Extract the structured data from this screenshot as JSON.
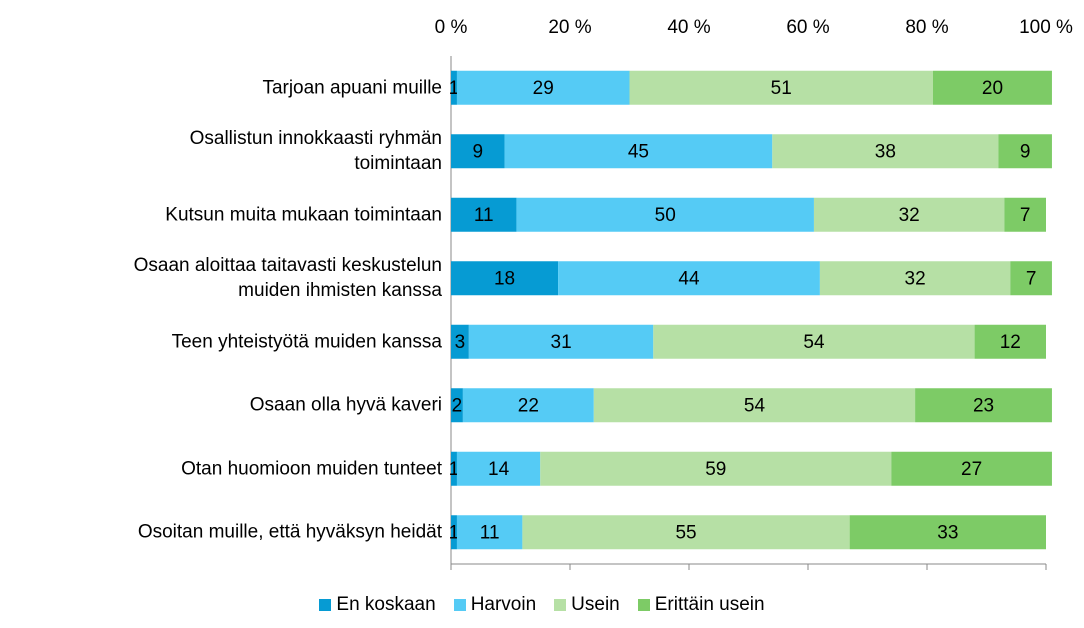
{
  "chart_data": {
    "type": "stacked-barh",
    "categories": [
      "Tarjoan apuani muille",
      "Osallistun innokkaasti ryhmän\ntoimintaan",
      "Kutsun muita mukaan toimintaan",
      "Osaan aloittaa taitavasti keskustelun\nmuiden ihmisten kanssa",
      "Teen yhteistyötä muiden kanssa",
      "Osaan olla hyvä kaveri",
      "Otan huomioon muiden tunteet",
      "Osoitan muille, että hyväksyn heidät"
    ],
    "series": [
      {
        "name": "En koskaan",
        "color": "#069bd3",
        "values": [
          1,
          9,
          11,
          18,
          3,
          2,
          1,
          1
        ]
      },
      {
        "name": "Harvoin",
        "color": "#55cbf5",
        "values": [
          29,
          45,
          50,
          44,
          31,
          22,
          14,
          11
        ]
      },
      {
        "name": "Usein",
        "color": "#b6e0a5",
        "values": [
          51,
          38,
          32,
          32,
          54,
          54,
          59,
          55
        ]
      },
      {
        "name": "Erittäin usein",
        "color": "#7dcb66",
        "values": [
          20,
          9,
          7,
          7,
          12,
          23,
          27,
          33
        ]
      }
    ],
    "xlim": [
      0,
      100
    ],
    "xticks": [
      {
        "value": 0,
        "label": "0 %"
      },
      {
        "value": 20,
        "label": "20 %"
      },
      {
        "value": 40,
        "label": "40 %"
      },
      {
        "value": 60,
        "label": "60 %"
      },
      {
        "value": 80,
        "label": "80 %"
      },
      {
        "value": 100,
        "label": "100 %"
      }
    ],
    "legend": "bottom"
  }
}
